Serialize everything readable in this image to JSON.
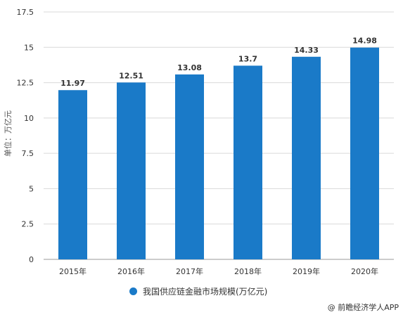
{
  "chart_data": {
    "type": "bar",
    "categories": [
      "2015年",
      "2016年",
      "2017年",
      "2018年",
      "2019年",
      "2020年"
    ],
    "series": [
      {
        "name": "我国供应链金融市场规模(万亿元)",
        "values": [
          11.97,
          12.51,
          13.08,
          13.7,
          14.33,
          14.98
        ]
      }
    ],
    "data_labels": [
      "11.97",
      "12.51",
      "13.08",
      "13.7",
      "14.33",
      "14.98"
    ],
    "yticks": [
      "0",
      "2.5",
      "5",
      "7.5",
      "10",
      "12.5",
      "15",
      "17.5"
    ],
    "ylabel": "单位：万亿元",
    "ylim": [
      0,
      17.5
    ],
    "grid": true,
    "legend_position": "bottom",
    "bar_color": "#1a7ac8"
  },
  "credit": "@ 前瞻经济学人APP"
}
